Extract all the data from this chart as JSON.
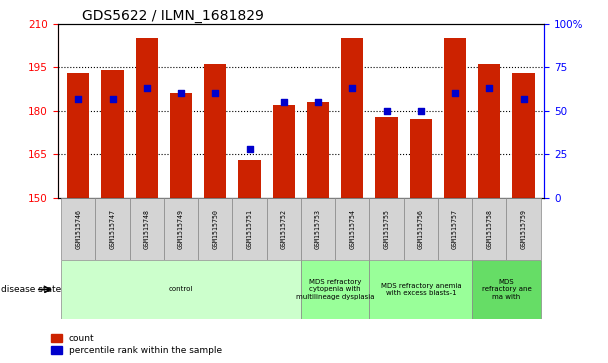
{
  "title": "GDS5622 / ILMN_1681829",
  "samples": [
    "GSM1515746",
    "GSM1515747",
    "GSM1515748",
    "GSM1515749",
    "GSM1515750",
    "GSM1515751",
    "GSM1515752",
    "GSM1515753",
    "GSM1515754",
    "GSM1515755",
    "GSM1515756",
    "GSM1515757",
    "GSM1515758",
    "GSM1515759"
  ],
  "counts": [
    193,
    194,
    205,
    186,
    196,
    163,
    182,
    183,
    205,
    178,
    177,
    205,
    196,
    193
  ],
  "percentiles": [
    57,
    57,
    63,
    60,
    60,
    28,
    55,
    55,
    63,
    50,
    50,
    60,
    63,
    57
  ],
  "ylim_left": [
    150,
    210
  ],
  "ylim_right": [
    0,
    100
  ],
  "yticks_left": [
    150,
    165,
    180,
    195,
    210
  ],
  "yticks_right": [
    0,
    25,
    50,
    75,
    100
  ],
  "ytick_labels_right": [
    "0",
    "25",
    "50",
    "75",
    "100%"
  ],
  "bar_color": "#cc2200",
  "dot_color": "#0000cc",
  "bar_width": 0.65,
  "disease_groups": [
    {
      "label": "control",
      "start": 0,
      "end": 7
    },
    {
      "label": "MDS refractory\ncytopenia with\nmultilineage dysplasia",
      "start": 7,
      "end": 9
    },
    {
      "label": "MDS refractory anemia\nwith excess blasts-1",
      "start": 9,
      "end": 12
    },
    {
      "label": "MDS\nrefractory ane\nma with",
      "start": 12,
      "end": 14
    }
  ],
  "group_colors": [
    "#ccffcc",
    "#99ff99",
    "#99ff99",
    "#66dd66"
  ],
  "xlabel_disease": "disease state",
  "legend_count": "count",
  "legend_percentile": "percentile rank within the sample",
  "background_color": "#ffffff",
  "sample_box_color": "#d4d4d4",
  "grid_lines": [
    165,
    180,
    195
  ],
  "fig_width": 6.08,
  "fig_height": 3.63,
  "dpi": 100
}
